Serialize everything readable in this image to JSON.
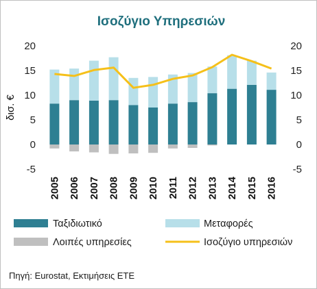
{
  "chart_data": {
    "type": "bar",
    "title": "Ισοζύγιο Υπηρεσιών",
    "ylabel": "δισ. €",
    "ylim": [
      -5,
      20
    ],
    "yticks": [
      -5,
      0,
      5,
      10,
      15,
      20
    ],
    "secondary_axis": true,
    "grid": false,
    "stacked": true,
    "legend_position": "bottom",
    "categories": [
      "2005",
      "2006",
      "2007",
      "2008",
      "2009",
      "2010",
      "2011",
      "2012",
      "2013",
      "2014",
      "2015",
      "2016"
    ],
    "series": [
      {
        "name": "Ταξιδιωτικό",
        "kind": "bar",
        "color": "#2e7f92",
        "values": [
          8.3,
          9.0,
          8.9,
          9.0,
          8.0,
          7.5,
          8.3,
          8.6,
          10.4,
          11.3,
          12.1,
          11.1
        ]
      },
      {
        "name": "Μεταφορές",
        "kind": "bar",
        "color": "#b7dfe9",
        "values": [
          6.9,
          6.4,
          8.1,
          8.7,
          5.5,
          6.2,
          5.9,
          5.9,
          5.4,
          6.8,
          4.9,
          3.5
        ]
      },
      {
        "name": "Λοιπές υπηρεσίες",
        "kind": "bar",
        "color": "#bfbfbf",
        "values": [
          -0.8,
          -1.4,
          -1.6,
          -1.9,
          -1.8,
          -1.7,
          -0.8,
          -0.7,
          -0.2,
          0.0,
          0.0,
          0.0
        ]
      },
      {
        "name": "Ισοζύγιο υπηρεσιών",
        "kind": "line",
        "color": "#f5c01a",
        "values": [
          14.3,
          13.9,
          15.1,
          15.6,
          11.5,
          12.1,
          13.3,
          14.0,
          15.7,
          18.2,
          16.9,
          15.4
        ]
      }
    ],
    "source": "Πηγή: Eurostat, Εκτιμήσεις ΕΤΕ"
  }
}
